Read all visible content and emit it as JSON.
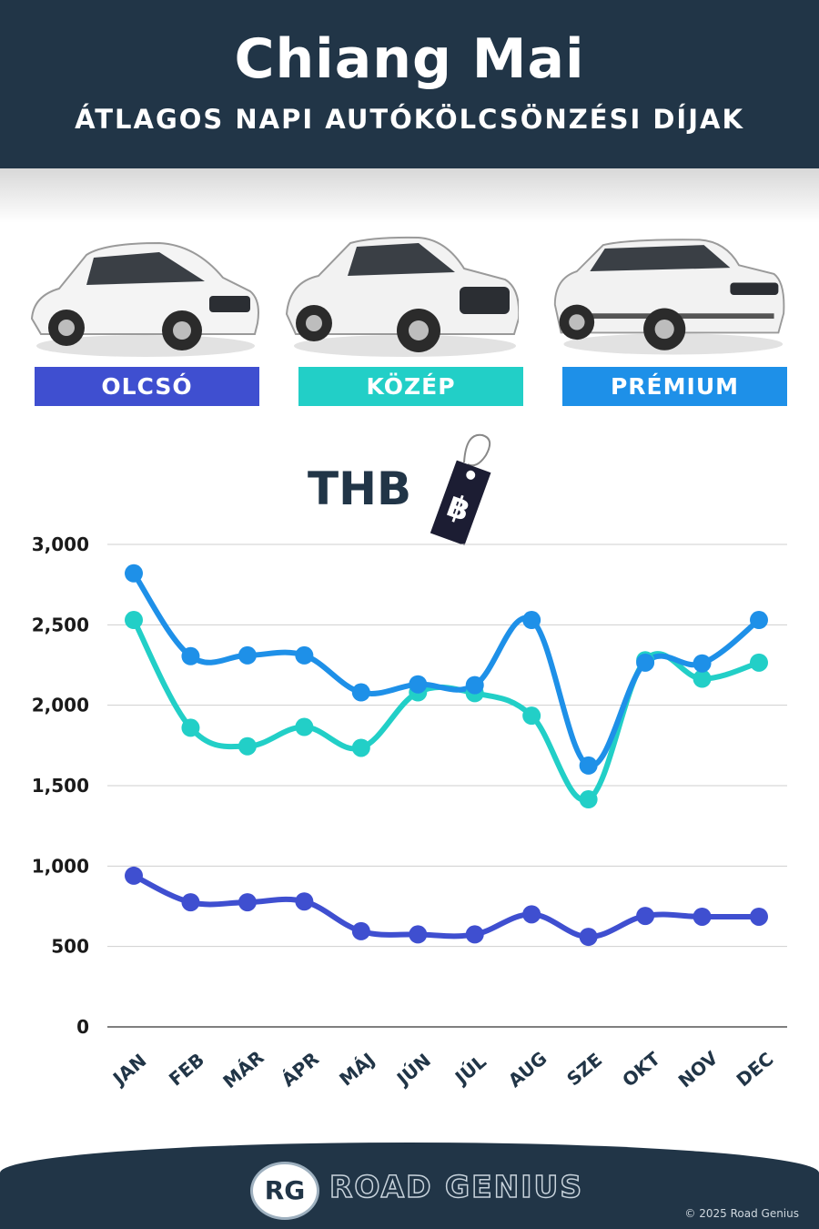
{
  "header": {
    "title": "Chiang Mai",
    "subtitle": "ÁTLAGOS NAPI AUTÓKÖLCSÖNZÉSI DÍJAK"
  },
  "categories": [
    {
      "label": "OLCSÓ",
      "color": "#3f4fd0"
    },
    {
      "label": "KÖZÉP",
      "color": "#22cfc7"
    },
    {
      "label": "PRÉMIUM",
      "color": "#1e90e8"
    }
  ],
  "currency": {
    "label": "THB",
    "symbol": "฿"
  },
  "chart_data": {
    "type": "line",
    "categories": [
      "JAN",
      "FEB",
      "MÁR",
      "ÁPR",
      "MÁJ",
      "JÚN",
      "JÚL",
      "AUG",
      "SZE",
      "OKT",
      "NOV",
      "DEC"
    ],
    "ylim": [
      0,
      3000
    ],
    "yticks": [
      "0",
      "500",
      "1,000",
      "1,500",
      "2,000",
      "2,500",
      "3,000"
    ],
    "ytick_values": [
      0,
      500,
      1000,
      1500,
      2000,
      2500,
      3000
    ],
    "grid": true,
    "series": [
      {
        "name": "OLCSÓ",
        "color": "#3f4fd0",
        "values": [
          940,
          775,
          775,
          780,
          595,
          575,
          575,
          700,
          560,
          690,
          685,
          685
        ]
      },
      {
        "name": "KÖZÉP",
        "color": "#22cfc7",
        "values": [
          2530,
          1860,
          1745,
          1865,
          1735,
          2080,
          2075,
          1935,
          1415,
          2280,
          2165,
          2265
        ]
      },
      {
        "name": "PRÉMIUM",
        "color": "#1e90e8",
        "values": [
          2820,
          2305,
          2310,
          2310,
          2080,
          2130,
          2125,
          2530,
          1625,
          2265,
          2260,
          2530
        ]
      }
    ]
  },
  "footer": {
    "logo_mark": "RG",
    "brand": "ROAD GENIUS",
    "copyright": "© 2025 Road Genius"
  }
}
